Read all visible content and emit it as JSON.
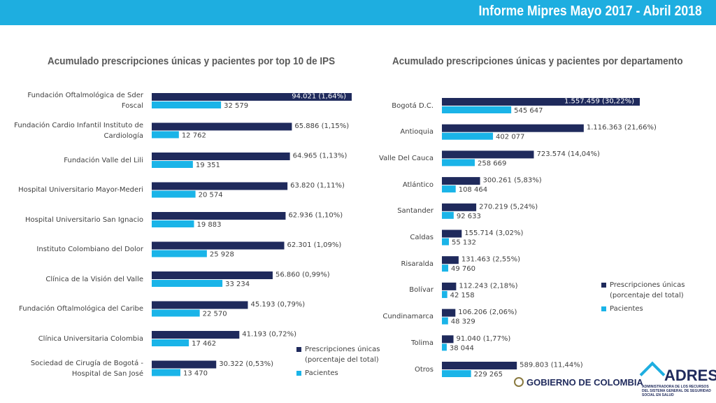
{
  "header": {
    "title": "Informe Mipres Mayo 2017 - Abril 2018"
  },
  "chart_data": [
    {
      "type": "bar",
      "orientation": "horizontal",
      "title": "Acumulado prescripciones únicas y pacientes por top 10 de IPS",
      "categories": [
        "Fundación Oftalmológica de Sder Foscal",
        "Fundación Cardio Infantil Instituto de Cardiología",
        "Fundación Valle del Lili",
        "Hospital Universitario Mayor-Mederi",
        "Hospital Universitario San Ignacio",
        "Instituto Colombiano del Dolor",
        "Clínica de la Visión del Valle",
        "Fundación Oftalmológica del Caribe",
        "Clínica Universitaria Colombia",
        "Sociedad de Cirugía de Bogotá - Hospital de San José"
      ],
      "series": [
        {
          "name": "Prescripciones únicas (porcentaje del total)",
          "color": "#1f2a5c",
          "values": [
            94021,
            65886,
            64965,
            63820,
            62936,
            62301,
            56860,
            45193,
            41193,
            30322
          ],
          "value_labels": [
            "94.021 (1,64%)",
            "65.886 (1,15%)",
            "64.965 (1,13%)",
            "63.820 (1,11%)",
            "62.936 (1,10%)",
            "62.301 (1,09%)",
            "56.860 (0,99%)",
            "45.193 (0,79%)",
            "41.193 (0,72%)",
            "30.322 (0,53%)"
          ]
        },
        {
          "name": "Pacientes",
          "color": "#1ab4e8",
          "values": [
            32579,
            12762,
            19351,
            20574,
            19883,
            25928,
            33234,
            22570,
            17462,
            13470
          ],
          "value_labels": [
            "32 579",
            "12 762",
            "19 351",
            "20 574",
            "19 883",
            "25 928",
            "33 234",
            "22 570",
            "17 462",
            "13 470"
          ]
        }
      ],
      "legend": "lower right"
    },
    {
      "type": "bar",
      "orientation": "horizontal",
      "title": "Acumulado prescripciones únicas y pacientes por departamento",
      "categories": [
        "Bogotá D.C.",
        "Antioquia",
        "Valle Del Cauca",
        "Atlántico",
        "Santander",
        "Caldas",
        "Risaralda",
        "Bolívar",
        "Cundinamarca",
        "Tolima",
        "Otros"
      ],
      "series": [
        {
          "name": "Prescripciones únicas (porcentaje del total)",
          "color": "#1f2a5c",
          "values": [
            1557459,
            1116363,
            723574,
            300261,
            270219,
            155714,
            131463,
            112243,
            106206,
            91040,
            589803
          ],
          "value_labels": [
            "1.557.459 (30,22%)",
            "1.116.363 (21,66%)",
            "723.574 (14,04%)",
            "300.261 (5,83%)",
            "270.219 (5,24%)",
            "155.714 (3,02%)",
            "131.463 (2,55%)",
            "112.243 (2,18%)",
            "106.206 (2,06%)",
            "91.040 (1,77%)",
            "589.803 (11,44%)"
          ]
        },
        {
          "name": "Pacientes",
          "color": "#1ab4e8",
          "values": [
            545647,
            402077,
            258669,
            108464,
            92633,
            55132,
            49760,
            42158,
            48329,
            38044,
            229265
          ],
          "value_labels": [
            "545 647",
            "402 077",
            "258 669",
            "108 464",
            "92 633",
            "55 132",
            "49 760",
            "42 158",
            "48 329",
            "38 044",
            "229 265"
          ]
        }
      ],
      "legend": "right"
    }
  ],
  "footer": {
    "government": "GOBIERNO DE COLOMBIA",
    "logo": "ADRES",
    "logo_subtitle": "ADMINISTRADORA DE LOS RECURSOS DEL SISTEMA GENERAL DE SEGURIDAD SOCIAL EN SALUD"
  }
}
